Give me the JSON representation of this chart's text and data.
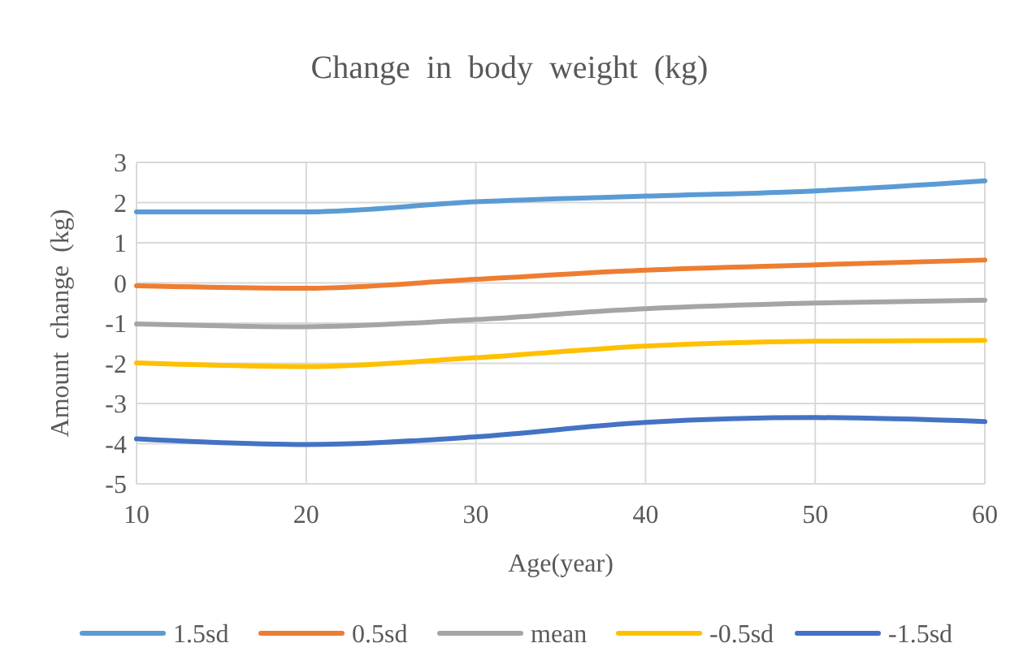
{
  "chart_data": {
    "type": "line",
    "title": "Change  in  body  weight  (kg)",
    "xlabel": "Age(year)",
    "ylabel": "Amount  change  (kg)",
    "x": [
      10,
      20,
      30,
      40,
      50,
      60
    ],
    "series": [
      {
        "name": "1.5sd",
        "color": "#5b9bd5",
        "values": [
          1.77,
          1.77,
          2.02,
          2.16,
          2.29,
          2.54
        ]
      },
      {
        "name": "0.5sd",
        "color": "#ed7d31",
        "values": [
          -0.07,
          -0.13,
          0.09,
          0.32,
          0.45,
          0.57
        ]
      },
      {
        "name": "mean",
        "color": "#a5a5a5",
        "values": [
          -1.02,
          -1.09,
          -0.91,
          -0.64,
          -0.5,
          -0.43
        ]
      },
      {
        "name": "-0.5sd",
        "color": "#ffc000",
        "values": [
          -1.99,
          -2.08,
          -1.86,
          -1.57,
          -1.45,
          -1.43
        ]
      },
      {
        "name": "-1.5sd",
        "color": "#4472c4",
        "values": [
          -3.88,
          -4.02,
          -3.83,
          -3.47,
          -3.35,
          -3.45
        ]
      }
    ],
    "xlim": [
      10,
      60
    ],
    "xticks": [
      10,
      20,
      30,
      40,
      50,
      60
    ],
    "ylim": [
      -5,
      3
    ],
    "yticks": [
      -5,
      -4,
      -3,
      -2,
      -1,
      0,
      1,
      2,
      3
    ],
    "grid": true,
    "legend": "bottom",
    "marker": "none",
    "line_style": "solid"
  }
}
